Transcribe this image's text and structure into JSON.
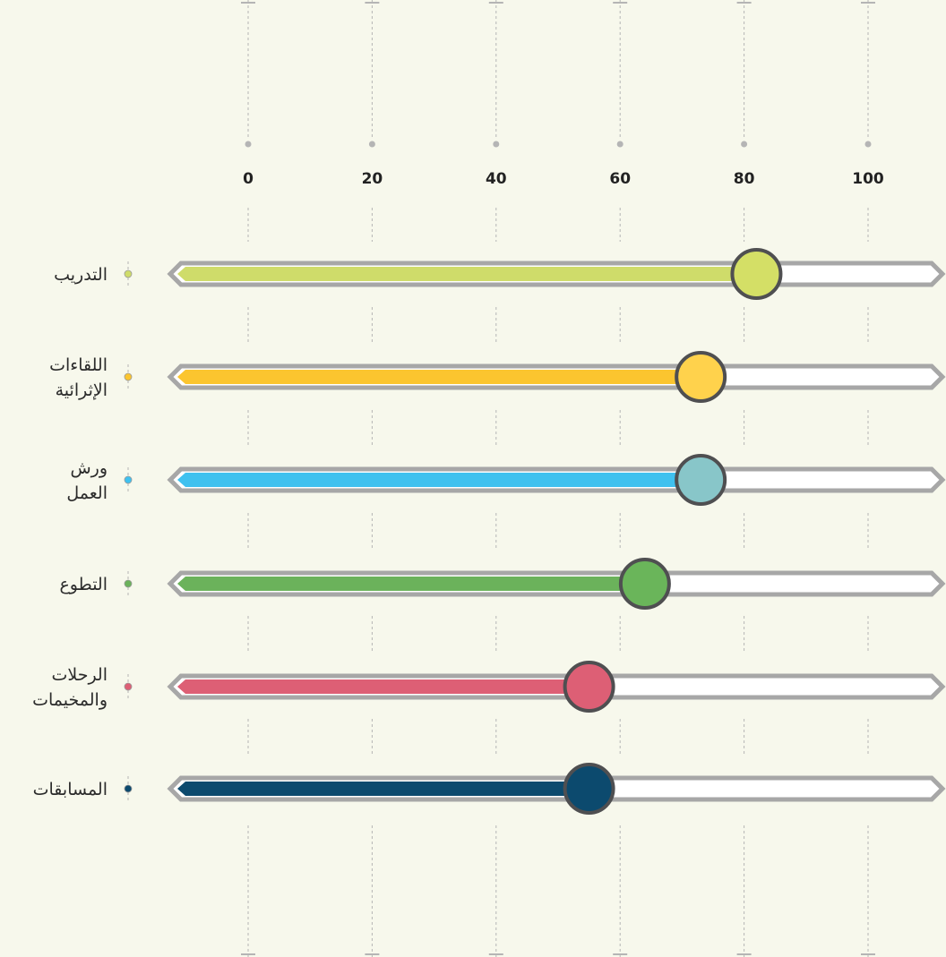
{
  "chart_data": {
    "type": "bar",
    "orientation": "horizontal",
    "x_ticks": [
      "0",
      "20",
      "40",
      "60",
      "80",
      "100"
    ],
    "xlim": [
      0,
      100
    ],
    "grid": true,
    "categories": [
      {
        "lines": [
          "التدريب"
        ],
        "value": 82,
        "fill": "#cfdc6a",
        "knob": "#d4df66"
      },
      {
        "lines": [
          "اللقاءات",
          "الإثرائية"
        ],
        "value": 73,
        "fill": "#fbc52f",
        "knob": "#ffd24c"
      },
      {
        "lines": [
          "ورش",
          "العمل"
        ],
        "value": 73,
        "fill": "#3fc1ef",
        "knob": "#88c6c9"
      },
      {
        "lines": [
          "التطوع"
        ],
        "value": 64,
        "fill": "#6bb25b",
        "knob": "#6ab55a"
      },
      {
        "lines": [
          "الرحلات",
          "والمخيمات"
        ],
        "value": 55,
        "fill": "#dd5f75",
        "knob": "#dd5f75"
      },
      {
        "lines": [
          "المسابقات"
        ],
        "value": 55,
        "fill": "#0c4a6e",
        "knob": "#0c4a6e"
      }
    ]
  }
}
